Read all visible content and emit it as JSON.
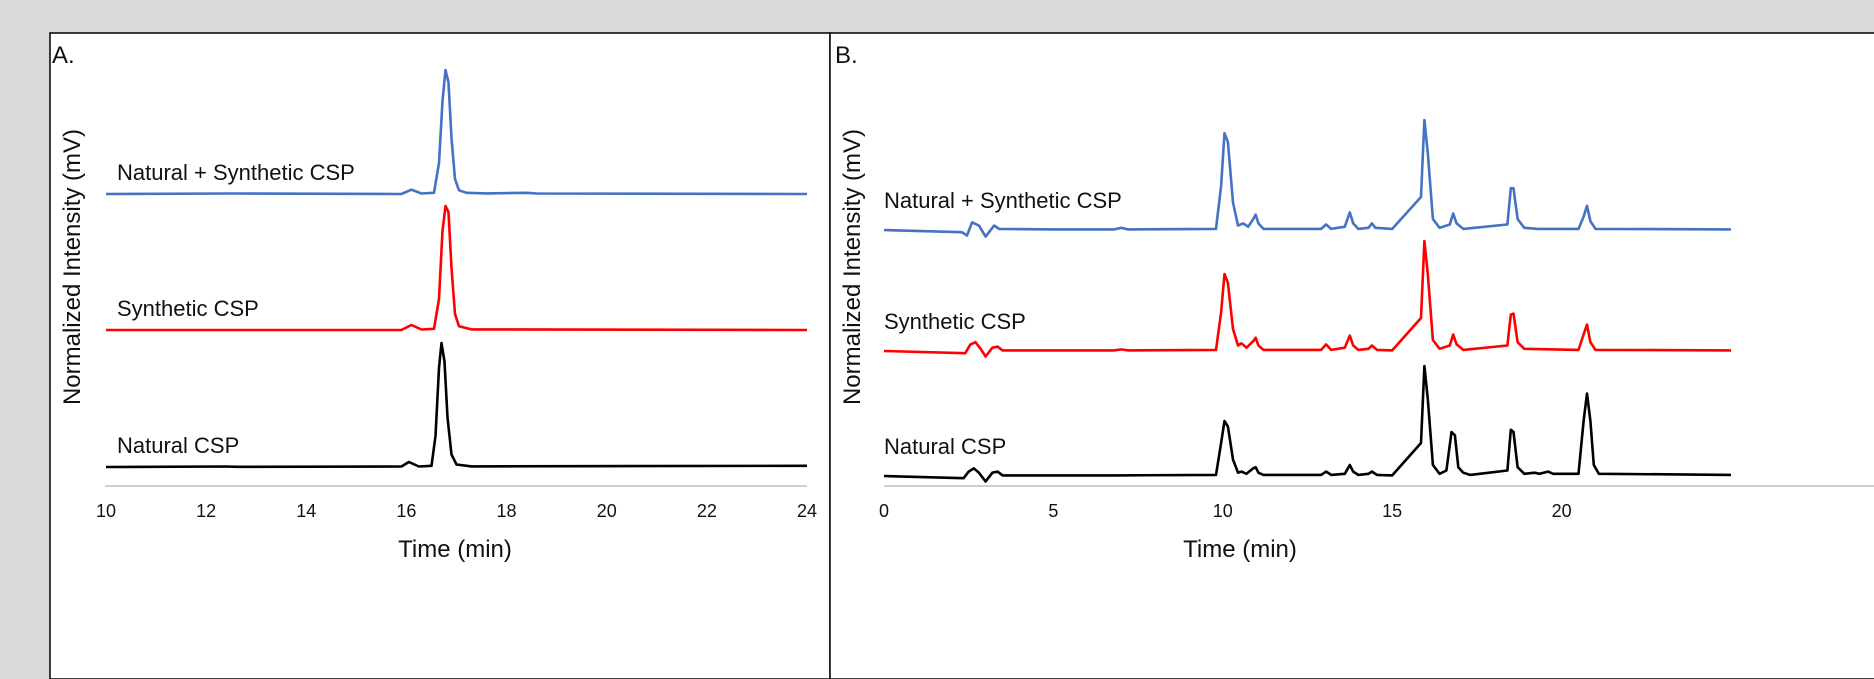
{
  "figure": {
    "background": "#d9d9d9"
  },
  "chart_data": [
    {
      "panel_label": "A.",
      "type": "line",
      "xlabel": "Time (min)",
      "ylabel": "Normalized Intensity (mV)",
      "xlim": [
        10,
        24
      ],
      "xticks": [
        "10",
        "12",
        "14",
        "16",
        "18",
        "20",
        "22",
        "24"
      ],
      "grid": false,
      "series": [
        {
          "name": "Natural + Synthetic CSP",
          "color": "#4472c4",
          "baseline": 0,
          "points": [
            [
              10,
              0
            ],
            [
              12.5,
              0.004
            ],
            [
              15.9,
              0
            ],
            [
              16.1,
              0.035
            ],
            [
              16.3,
              0.004
            ],
            [
              16.55,
              0.01
            ],
            [
              16.65,
              0.25
            ],
            [
              16.72,
              0.75
            ],
            [
              16.78,
              1.0
            ],
            [
              16.84,
              0.9
            ],
            [
              16.9,
              0.45
            ],
            [
              16.97,
              0.12
            ],
            [
              17.05,
              0.03
            ],
            [
              17.2,
              0.01
            ],
            [
              17.6,
              0.005
            ],
            [
              18.4,
              0.01
            ],
            [
              18.6,
              0.004
            ],
            [
              24,
              0
            ]
          ]
        },
        {
          "name": "Synthetic CSP",
          "color": "#ff0000",
          "baseline": 0,
          "points": [
            [
              10,
              0
            ],
            [
              15.9,
              0
            ],
            [
              16.1,
              0.04
            ],
            [
              16.3,
              0.004
            ],
            [
              16.55,
              0.01
            ],
            [
              16.65,
              0.25
            ],
            [
              16.72,
              0.8
            ],
            [
              16.78,
              1.0
            ],
            [
              16.84,
              0.95
            ],
            [
              16.9,
              0.5
            ],
            [
              16.97,
              0.13
            ],
            [
              17.05,
              0.03
            ],
            [
              17.3,
              0.005
            ],
            [
              24,
              0
            ]
          ]
        },
        {
          "name": "Natural CSP",
          "color": "#000000",
          "baseline": 0,
          "points": [
            [
              10,
              0
            ],
            [
              12.4,
              0.004
            ],
            [
              12.6,
              0.002
            ],
            [
              15.9,
              0.004
            ],
            [
              16.05,
              0.04
            ],
            [
              16.25,
              0.004
            ],
            [
              16.5,
              0.01
            ],
            [
              16.58,
              0.25
            ],
            [
              16.65,
              0.8
            ],
            [
              16.7,
              1.0
            ],
            [
              16.76,
              0.85
            ],
            [
              16.82,
              0.4
            ],
            [
              16.9,
              0.1
            ],
            [
              17.0,
              0.02
            ],
            [
              17.3,
              0.005
            ],
            [
              24,
              0.01
            ]
          ]
        }
      ]
    },
    {
      "panel_label": "B.",
      "type": "line",
      "xlabel": "Time (min)",
      "ylabel": "Normalized Intensity (mV)",
      "xlim": [
        0,
        25
      ],
      "xticks": [
        "0",
        "5",
        "10",
        "15",
        "20"
      ],
      "grid": false,
      "series": [
        {
          "name": "Natural + Synthetic CSP",
          "color": "#4472c4",
          "baseline": 0,
          "points": [
            [
              0,
              0
            ],
            [
              2.3,
              -0.02
            ],
            [
              2.45,
              -0.05
            ],
            [
              2.6,
              0.07
            ],
            [
              2.8,
              0.04
            ],
            [
              3.0,
              -0.06
            ],
            [
              3.25,
              0.04
            ],
            [
              3.4,
              0.01
            ],
            [
              5,
              0.005
            ],
            [
              6.8,
              0.005
            ],
            [
              7.0,
              0.02
            ],
            [
              7.2,
              0.005
            ],
            [
              9.8,
              0.01
            ],
            [
              9.95,
              0.4
            ],
            [
              10.05,
              0.88
            ],
            [
              10.15,
              0.8
            ],
            [
              10.3,
              0.25
            ],
            [
              10.45,
              0.04
            ],
            [
              10.6,
              0.06
            ],
            [
              10.75,
              0.03
            ],
            [
              10.9,
              0.1
            ],
            [
              10.97,
              0.14
            ],
            [
              11.05,
              0.06
            ],
            [
              11.2,
              0.01
            ],
            [
              12.9,
              0.01
            ],
            [
              13.05,
              0.05
            ],
            [
              13.2,
              0.01
            ],
            [
              13.6,
              0.03
            ],
            [
              13.75,
              0.16
            ],
            [
              13.85,
              0.06
            ],
            [
              14.0,
              0.01
            ],
            [
              14.3,
              0.02
            ],
            [
              14.4,
              0.06
            ],
            [
              14.5,
              0.02
            ],
            [
              15.0,
              0.01
            ],
            [
              15.85,
              0.3
            ],
            [
              15.95,
              1.0
            ],
            [
              16.05,
              0.7
            ],
            [
              16.2,
              0.1
            ],
            [
              16.4,
              0.02
            ],
            [
              16.7,
              0.05
            ],
            [
              16.8,
              0.15
            ],
            [
              16.9,
              0.06
            ],
            [
              17.1,
              0.01
            ],
            [
              18.4,
              0.05
            ],
            [
              18.5,
              0.38
            ],
            [
              18.58,
              0.38
            ],
            [
              18.7,
              0.1
            ],
            [
              18.9,
              0.02
            ],
            [
              19.3,
              0.01
            ],
            [
              20.5,
              0.01
            ],
            [
              20.65,
              0.12
            ],
            [
              20.75,
              0.22
            ],
            [
              20.85,
              0.08
            ],
            [
              21.0,
              0.01
            ],
            [
              25,
              0.005
            ]
          ]
        },
        {
          "name": "Synthetic CSP",
          "color": "#ff0000",
          "baseline": 0,
          "points": [
            [
              0,
              0
            ],
            [
              2.4,
              -0.02
            ],
            [
              2.55,
              0.06
            ],
            [
              2.7,
              0.08
            ],
            [
              2.85,
              0.02
            ],
            [
              3.0,
              -0.05
            ],
            [
              3.2,
              0.03
            ],
            [
              3.35,
              0.04
            ],
            [
              3.5,
              0.005
            ],
            [
              5,
              0.005
            ],
            [
              6.8,
              0.005
            ],
            [
              7.0,
              0.015
            ],
            [
              7.2,
              0.005
            ],
            [
              9.8,
              0.01
            ],
            [
              9.95,
              0.35
            ],
            [
              10.05,
              0.7
            ],
            [
              10.15,
              0.62
            ],
            [
              10.3,
              0.2
            ],
            [
              10.45,
              0.05
            ],
            [
              10.55,
              0.07
            ],
            [
              10.7,
              0.03
            ],
            [
              10.9,
              0.09
            ],
            [
              10.97,
              0.12
            ],
            [
              11.05,
              0.05
            ],
            [
              11.2,
              0.01
            ],
            [
              12.9,
              0.01
            ],
            [
              13.05,
              0.06
            ],
            [
              13.2,
              0.01
            ],
            [
              13.6,
              0.03
            ],
            [
              13.75,
              0.14
            ],
            [
              13.85,
              0.05
            ],
            [
              14.0,
              0.01
            ],
            [
              14.3,
              0.02
            ],
            [
              14.4,
              0.05
            ],
            [
              14.55,
              0.01
            ],
            [
              15.0,
              0.005
            ],
            [
              15.85,
              0.3
            ],
            [
              15.95,
              1.0
            ],
            [
              16.05,
              0.7
            ],
            [
              16.2,
              0.1
            ],
            [
              16.4,
              0.02
            ],
            [
              16.7,
              0.05
            ],
            [
              16.8,
              0.15
            ],
            [
              16.9,
              0.06
            ],
            [
              17.1,
              0.01
            ],
            [
              18.4,
              0.05
            ],
            [
              18.5,
              0.33
            ],
            [
              18.58,
              0.34
            ],
            [
              18.7,
              0.08
            ],
            [
              18.9,
              0.02
            ],
            [
              20.5,
              0.01
            ],
            [
              20.65,
              0.15
            ],
            [
              20.75,
              0.24
            ],
            [
              20.85,
              0.08
            ],
            [
              21.0,
              0.01
            ],
            [
              25,
              0.005
            ]
          ]
        },
        {
          "name": "Natural CSP",
          "color": "#000000",
          "baseline": 0,
          "points": [
            [
              0,
              0
            ],
            [
              2.35,
              -0.02
            ],
            [
              2.5,
              0.04
            ],
            [
              2.65,
              0.07
            ],
            [
              2.8,
              0.03
            ],
            [
              3.0,
              -0.05
            ],
            [
              3.2,
              0.03
            ],
            [
              3.35,
              0.04
            ],
            [
              3.5,
              0.005
            ],
            [
              6.8,
              0.005
            ],
            [
              9.8,
              0.01
            ],
            [
              9.95,
              0.3
            ],
            [
              10.05,
              0.5
            ],
            [
              10.15,
              0.45
            ],
            [
              10.3,
              0.15
            ],
            [
              10.45,
              0.03
            ],
            [
              10.55,
              0.04
            ],
            [
              10.7,
              0.02
            ],
            [
              10.9,
              0.07
            ],
            [
              10.97,
              0.08
            ],
            [
              11.05,
              0.03
            ],
            [
              11.2,
              0.01
            ],
            [
              12.9,
              0.01
            ],
            [
              13.05,
              0.04
            ],
            [
              13.2,
              0.01
            ],
            [
              13.6,
              0.02
            ],
            [
              13.75,
              0.1
            ],
            [
              13.85,
              0.04
            ],
            [
              14.0,
              0.01
            ],
            [
              14.3,
              0.02
            ],
            [
              14.4,
              0.04
            ],
            [
              14.55,
              0.01
            ],
            [
              15.0,
              0.005
            ],
            [
              15.85,
              0.3
            ],
            [
              15.95,
              1.0
            ],
            [
              16.05,
              0.7
            ],
            [
              16.2,
              0.1
            ],
            [
              16.4,
              0.02
            ],
            [
              16.6,
              0.05
            ],
            [
              16.75,
              0.4
            ],
            [
              16.85,
              0.37
            ],
            [
              16.95,
              0.08
            ],
            [
              17.1,
              0.03
            ],
            [
              17.3,
              0.01
            ],
            [
              18.4,
              0.05
            ],
            [
              18.5,
              0.42
            ],
            [
              18.58,
              0.4
            ],
            [
              18.7,
              0.08
            ],
            [
              18.9,
              0.02
            ],
            [
              19.2,
              0.03
            ],
            [
              19.35,
              0.02
            ],
            [
              19.6,
              0.04
            ],
            [
              19.75,
              0.02
            ],
            [
              20.5,
              0.02
            ],
            [
              20.65,
              0.5
            ],
            [
              20.75,
              0.75
            ],
            [
              20.85,
              0.5
            ],
            [
              20.95,
              0.1
            ],
            [
              21.1,
              0.02
            ],
            [
              25,
              0.01
            ]
          ]
        }
      ]
    }
  ]
}
